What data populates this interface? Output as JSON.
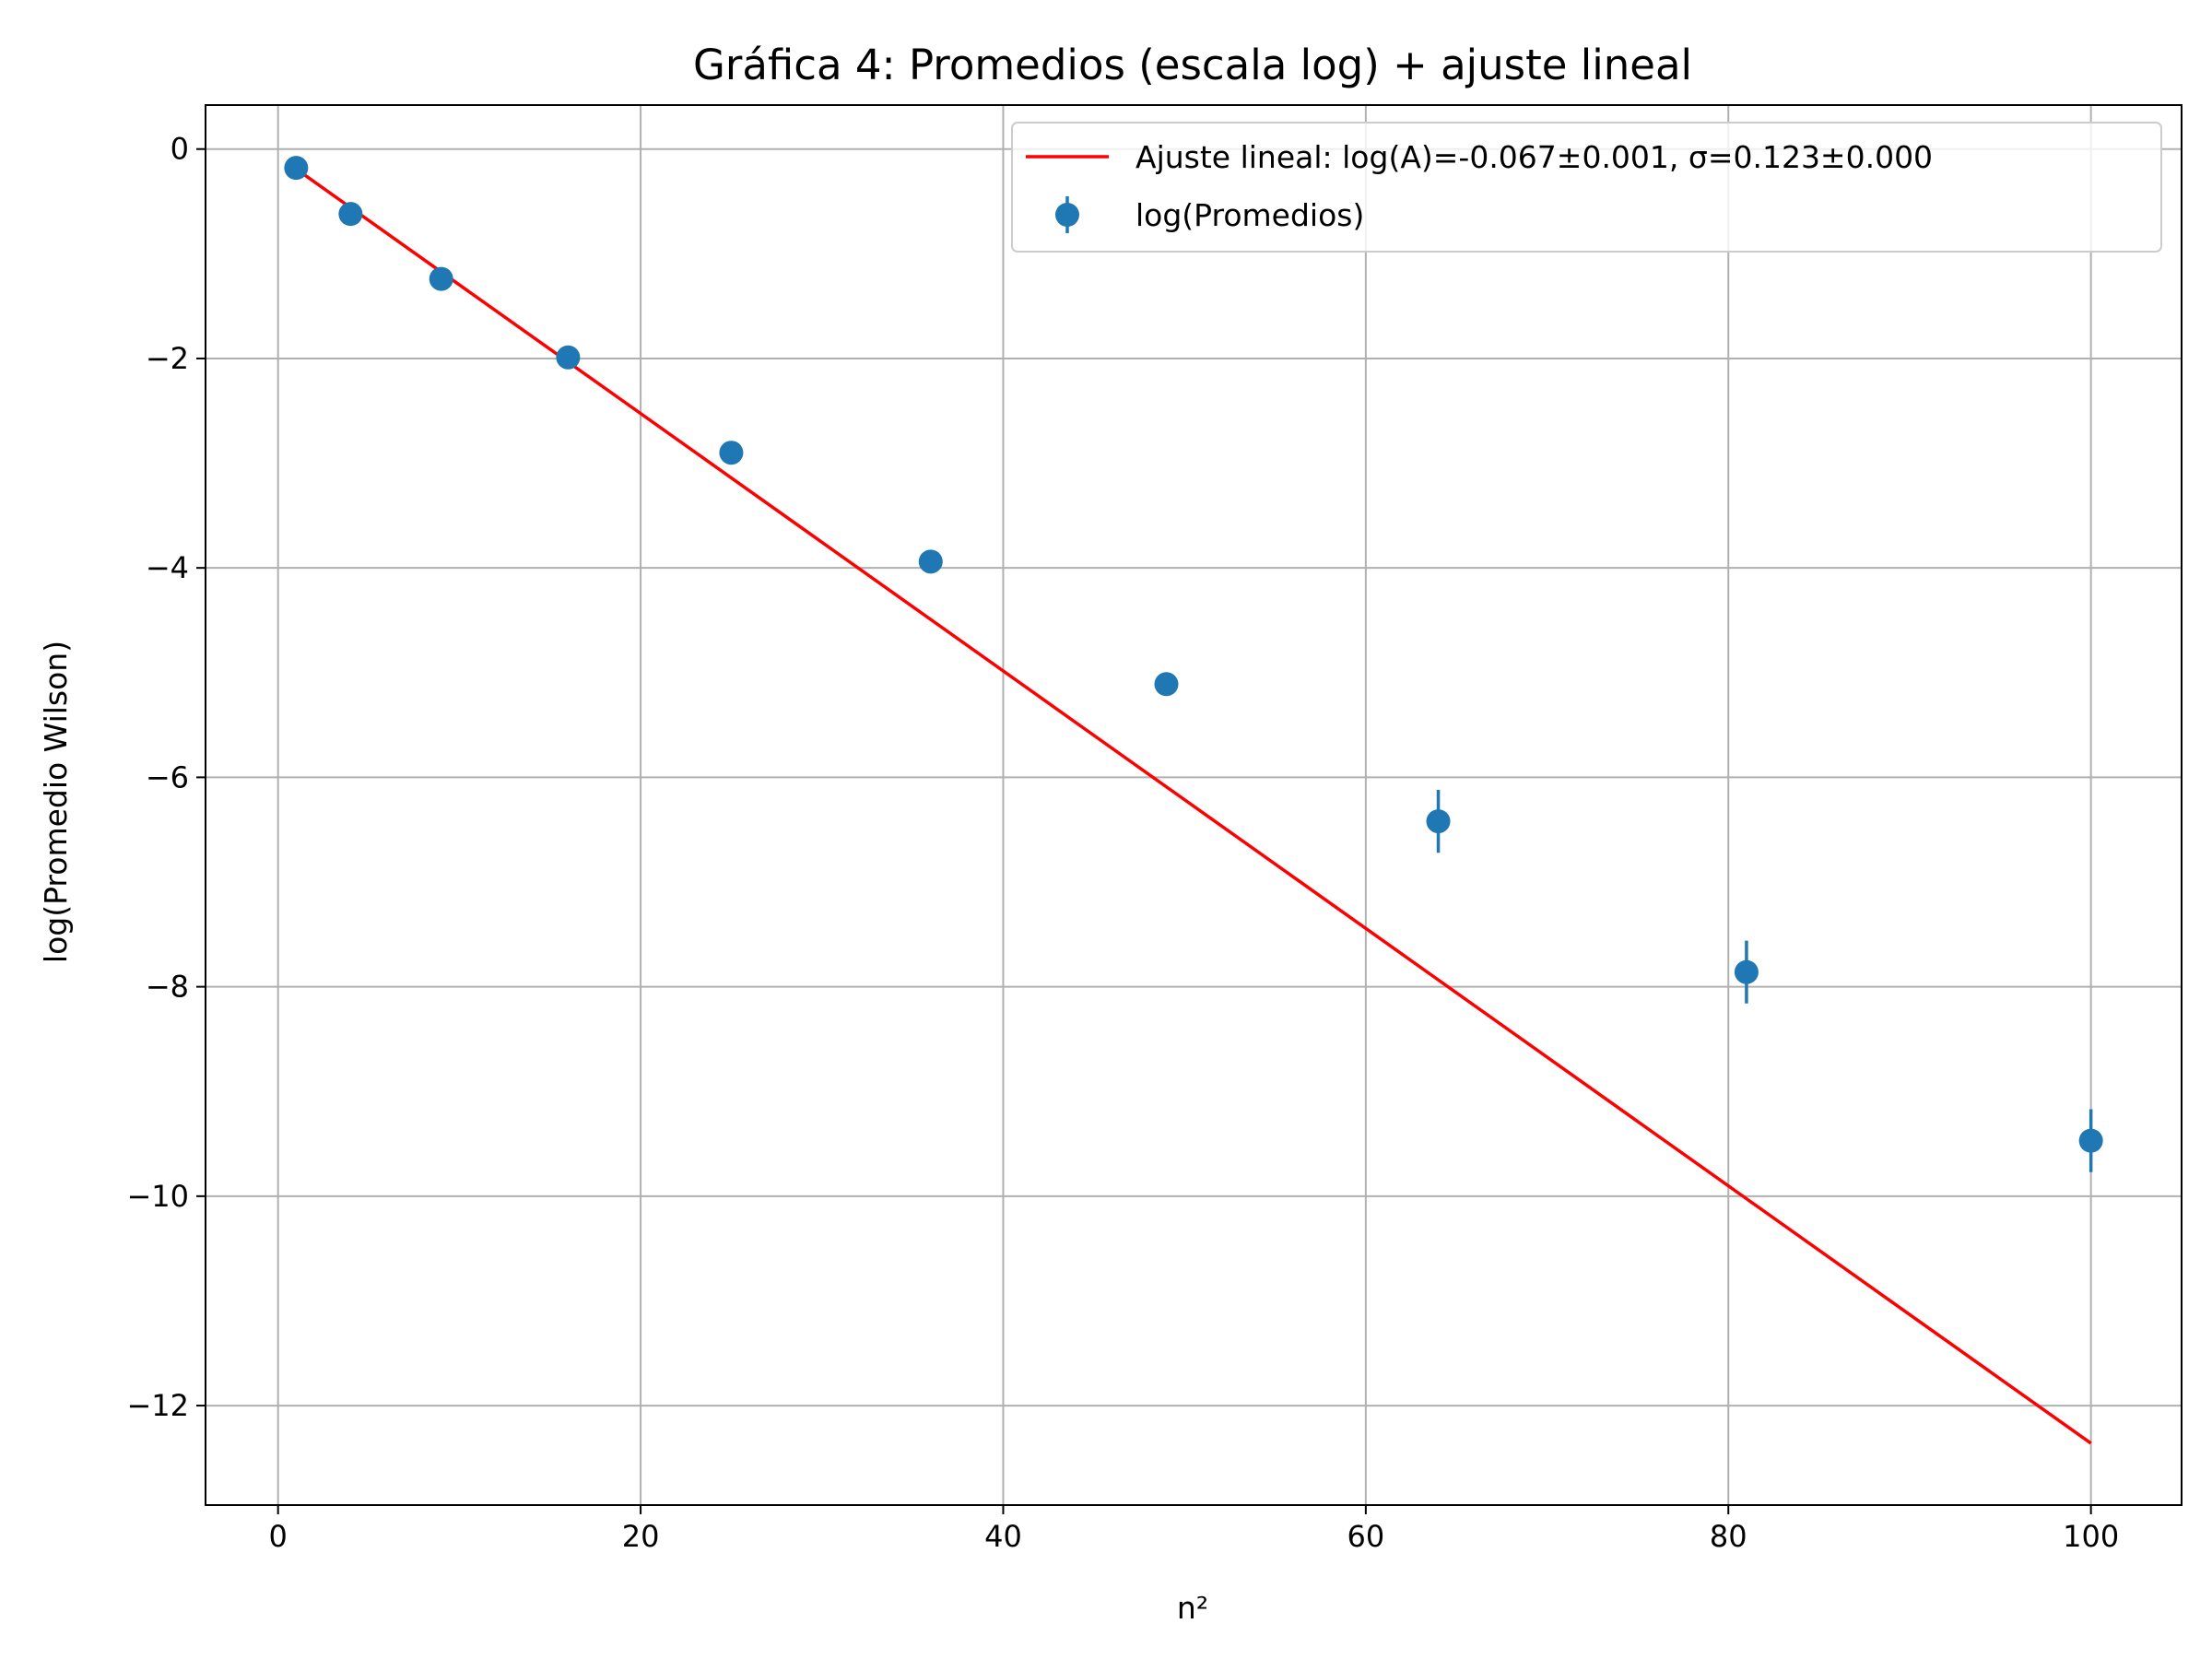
{
  "chart_data": {
    "type": "scatter",
    "title": "Gráfica 4: Promedios (escala log) + ajuste lineal",
    "xlabel": "n²",
    "ylabel": "log(Promedio Wilson)",
    "xlim": [
      -4,
      105
    ],
    "ylim": [
      -12.95,
      0.42
    ],
    "xticks": [
      {
        "value": 0,
        "label": "0"
      },
      {
        "value": 20,
        "label": "20"
      },
      {
        "value": 40,
        "label": "40"
      },
      {
        "value": 60,
        "label": "60"
      },
      {
        "value": 80,
        "label": "80"
      },
      {
        "value": 100,
        "label": "100"
      }
    ],
    "yticks": [
      {
        "value": 0,
        "label": "0"
      },
      {
        "value": -2,
        "label": "−2"
      },
      {
        "value": -4,
        "label": "−4"
      },
      {
        "value": -6,
        "label": "−6"
      },
      {
        "value": -8,
        "label": "−8"
      },
      {
        "value": -10,
        "label": "−10"
      },
      {
        "value": -12,
        "label": "−12"
      }
    ],
    "grid": true,
    "legend_position": "top-right",
    "series": [
      {
        "name": "log(Promedios)",
        "kind": "errorbar",
        "color": "#1f77b4",
        "x": [
          1,
          4,
          9,
          16,
          25,
          36,
          49,
          64,
          81,
          100
        ],
        "y": [
          -0.18,
          -0.62,
          -1.24,
          -1.99,
          -2.9,
          -3.94,
          -5.11,
          -6.42,
          -7.86,
          -9.47
        ],
        "yerr": [
          0.0,
          0.0,
          0.0,
          0.0,
          0.03,
          0.05,
          0.08,
          0.3,
          0.3,
          0.3
        ]
      },
      {
        "name": "Ajuste lineal: log(A)=-0.067±0.001, σ=0.123±0.000",
        "kind": "line",
        "color": "#ff0000",
        "x": [
          1,
          100
        ],
        "y": [
          -0.19,
          -12.36
        ]
      }
    ]
  }
}
